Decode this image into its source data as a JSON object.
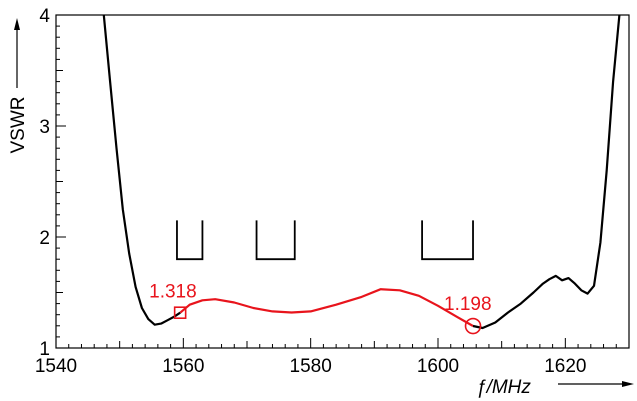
{
  "chart_data": {
    "type": "line",
    "title": "",
    "xlabel": "ƒ/MHz",
    "ylabel": "VSWR",
    "xlim": [
      1540,
      1630
    ],
    "ylim": [
      1,
      4
    ],
    "xticks": [
      1540,
      1560,
      1580,
      1600,
      1620
    ],
    "yticks": [
      1,
      2,
      3,
      4
    ],
    "grid": false,
    "legend": "none",
    "colors": {
      "measured": "#000000",
      "highlight": "#e8141c"
    },
    "series": [
      {
        "x": [
          1547.5,
          1548.5,
          1549.5,
          1550.5,
          1551.5,
          1552.5,
          1553.5,
          1554.5,
          1555.5,
          1556.5,
          1557.5,
          1558.5,
          1559.5
        ],
        "y": [
          4.0,
          3.4,
          2.8,
          2.25,
          1.85,
          1.55,
          1.36,
          1.26,
          1.21,
          1.22,
          1.25,
          1.28,
          1.318
        ]
      },
      {
        "x": [
          1559.5,
          1561,
          1563,
          1565,
          1568,
          1571,
          1574,
          1577,
          1580,
          1584,
          1588,
          1591,
          1594,
          1597,
          1600,
          1603,
          1605.5
        ],
        "y": [
          1.318,
          1.39,
          1.43,
          1.44,
          1.41,
          1.36,
          1.33,
          1.32,
          1.33,
          1.39,
          1.46,
          1.53,
          1.52,
          1.47,
          1.38,
          1.28,
          1.198
        ]
      },
      {
        "x": [
          1605.5,
          1607,
          1609,
          1611,
          1613,
          1615,
          1616.5,
          1617.5,
          1618.5,
          1619.5,
          1620.5,
          1621.5,
          1622.5,
          1623.5,
          1624.5,
          1625.5,
          1626.5,
          1627.5,
          1628.5
        ],
        "y": [
          1.198,
          1.18,
          1.23,
          1.32,
          1.4,
          1.5,
          1.58,
          1.62,
          1.65,
          1.61,
          1.63,
          1.58,
          1.52,
          1.49,
          1.56,
          1.95,
          2.6,
          3.4,
          4.0
        ]
      }
    ],
    "bands": [
      {
        "x": [
          1559,
          1563
        ],
        "y": [
          1.8,
          2.15
        ]
      },
      {
        "x": [
          1571.5,
          1577.5
        ],
        "y": [
          1.8,
          2.15
        ]
      },
      {
        "x": [
          1597.5,
          1605.5
        ],
        "y": [
          1.8,
          2.15
        ]
      }
    ],
    "annotations": [
      {
        "text": "1.318",
        "x": 1559.5,
        "y": 1.318,
        "marker": "square"
      },
      {
        "text": "1.198",
        "x": 1605.5,
        "y": 1.198,
        "marker": "circle"
      }
    ]
  }
}
